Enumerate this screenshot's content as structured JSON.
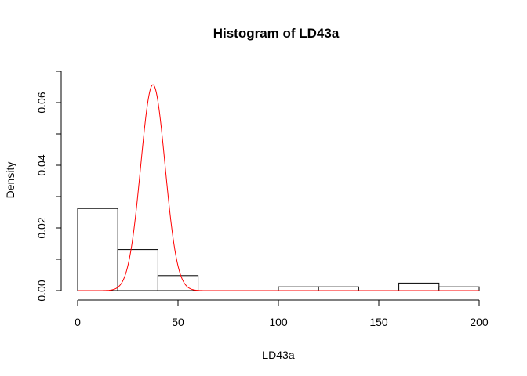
{
  "chart_data": {
    "type": "bar",
    "title": "Histogram of LD43a",
    "xlabel": "LD43a",
    "ylabel": "Density",
    "xlim": [
      0,
      200
    ],
    "ylim": [
      0,
      0.07
    ],
    "xticks": [
      "0",
      "50",
      "100",
      "150",
      "200"
    ],
    "yticks": [
      "0.00",
      "0.02",
      "0.04",
      "0.06"
    ],
    "bin_width": 20,
    "bins": [
      {
        "from": 0,
        "to": 20,
        "density": 0.0262
      },
      {
        "from": 20,
        "to": 40,
        "density": 0.0131
      },
      {
        "from": 40,
        "to": 60,
        "density": 0.0048
      },
      {
        "from": 60,
        "to": 80,
        "density": 0
      },
      {
        "from": 80,
        "to": 100,
        "density": 0
      },
      {
        "from": 100,
        "to": 120,
        "density": 0.0012
      },
      {
        "from": 120,
        "to": 140,
        "density": 0.0012
      },
      {
        "from": 140,
        "to": 160,
        "density": 0
      },
      {
        "from": 160,
        "to": 180,
        "density": 0.0024
      },
      {
        "from": 180,
        "to": 200,
        "density": 0.0012
      }
    ],
    "curve": {
      "type": "normal",
      "mean": 37.5,
      "sd": 6.07,
      "color": "#ff0000"
    },
    "grid": false,
    "bar_fill": "#ffffff",
    "bar_stroke": "#000000"
  }
}
